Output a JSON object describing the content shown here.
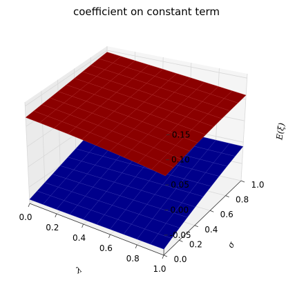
{
  "chart_data": {
    "type": "surface3d",
    "title": "coefficient on constant term",
    "xlabel": "λ",
    "ylabel": "σ",
    "zlabel": "E(ξ)",
    "xlim": [
      0.0,
      1.0
    ],
    "ylim": [
      0.0,
      1.0
    ],
    "zlim": [
      -0.09,
      0.16
    ],
    "xticks": [
      "0.0",
      "0.2",
      "0.4",
      "0.6",
      "0.8",
      "1.0"
    ],
    "yticks": [
      "0.0",
      "0.2",
      "0.4",
      "0.6",
      "0.8",
      "1.0"
    ],
    "zticks": [
      "-0.05",
      "0.00",
      "0.05",
      "0.10",
      "0.15"
    ],
    "grid": true,
    "grid_x": [
      0.0,
      0.1,
      0.2,
      0.3,
      0.4,
      0.5,
      0.6,
      0.7,
      0.8,
      0.9,
      1.0
    ],
    "grid_y": [
      0.0,
      0.1,
      0.2,
      0.3,
      0.4,
      0.5,
      0.6,
      0.7,
      0.8,
      0.9,
      1.0
    ],
    "series": [
      {
        "color": "#8b0000",
        "edge_color": "#b23030",
        "z_corners": {
          "x0y0": 0.122,
          "x1y0": 0.068,
          "x0y1": 0.146,
          "x1y1": 0.11
        }
      },
      {
        "color": "#00008b",
        "edge_color": "#3a3ab2",
        "z_corners": {
          "x0y0": -0.08,
          "x1y0": -0.078,
          "x0y1": -0.004,
          "x1y1": -0.01
        }
      }
    ]
  }
}
